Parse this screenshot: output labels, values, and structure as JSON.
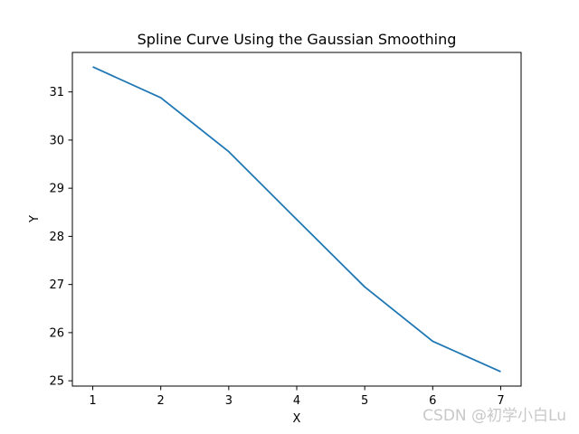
{
  "chart_data": {
    "type": "line",
    "title": "Spline Curve Using the Gaussian Smoothing",
    "xlabel": "X",
    "ylabel": "Y",
    "x": [
      1,
      2,
      3,
      4,
      5,
      6,
      7
    ],
    "series": [
      {
        "values": [
          31.52,
          30.88,
          29.76,
          28.35,
          26.95,
          25.82,
          25.19
        ],
        "color": "#1f77b4"
      }
    ],
    "xlim": [
      0.7,
      7.3
    ],
    "ylim": [
      24.89,
      31.82
    ],
    "xticks": [
      "1",
      "2",
      "3",
      "4",
      "5",
      "6",
      "7"
    ],
    "yticks": [
      "25",
      "26",
      "27",
      "28",
      "29",
      "30",
      "31"
    ],
    "grid": false,
    "legend": "none"
  },
  "watermark": "CSDN @初学小白Lu"
}
